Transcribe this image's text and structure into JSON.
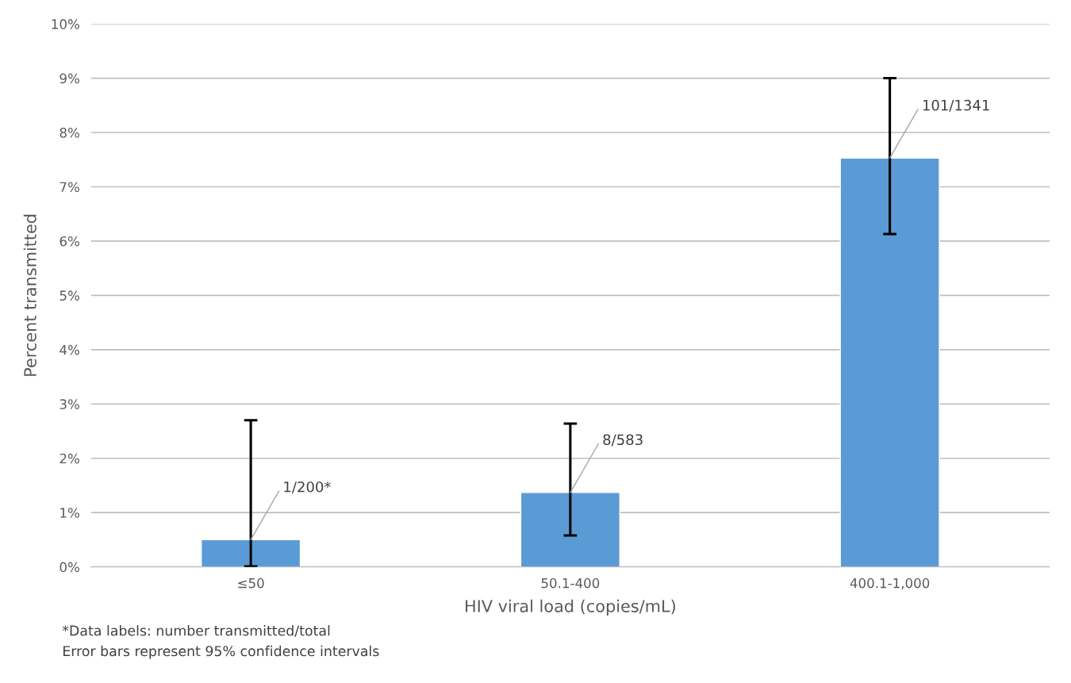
{
  "chart_data": {
    "type": "bar",
    "xlabel": "HIV viral load (copies/mL)",
    "ylabel": "Percent transmitted",
    "categories": [
      "≤50",
      "50.1-400",
      "400.1-1,000"
    ],
    "values": [
      0.5,
      1.37,
      7.53
    ],
    "color": "#5b9bd5",
    "errors": [
      [
        0.01,
        2.7
      ],
      [
        0.58,
        2.64
      ],
      [
        6.13,
        9.0
      ]
    ],
    "ylim": [
      0,
      10
    ],
    "yticks": [
      {
        "value": 0,
        "label": "0%"
      },
      {
        "value": 1,
        "label": "1%"
      },
      {
        "value": 2,
        "label": "2%"
      },
      {
        "value": 3,
        "label": "3%"
      },
      {
        "value": 4,
        "label": "4%"
      },
      {
        "value": 5,
        "label": "5%"
      },
      {
        "value": 6,
        "label": "6%"
      },
      {
        "value": 7,
        "label": "7%"
      },
      {
        "value": 8,
        "label": "8%"
      },
      {
        "value": 9,
        "label": "9%"
      },
      {
        "value": 10,
        "label": "10%"
      }
    ],
    "grid": "y",
    "annotations": [
      {
        "text": "1/200*",
        "x": "≤50",
        "y": 0.5
      },
      {
        "text": "8/583",
        "x": "50.1-400",
        "y": 1.37
      },
      {
        "text": "101/1341",
        "x": "400.1-1,000",
        "y": 7.53
      },
      "*Data labels: number transmitted/total",
      "Error bars represent 95% confidence intervals"
    ]
  }
}
